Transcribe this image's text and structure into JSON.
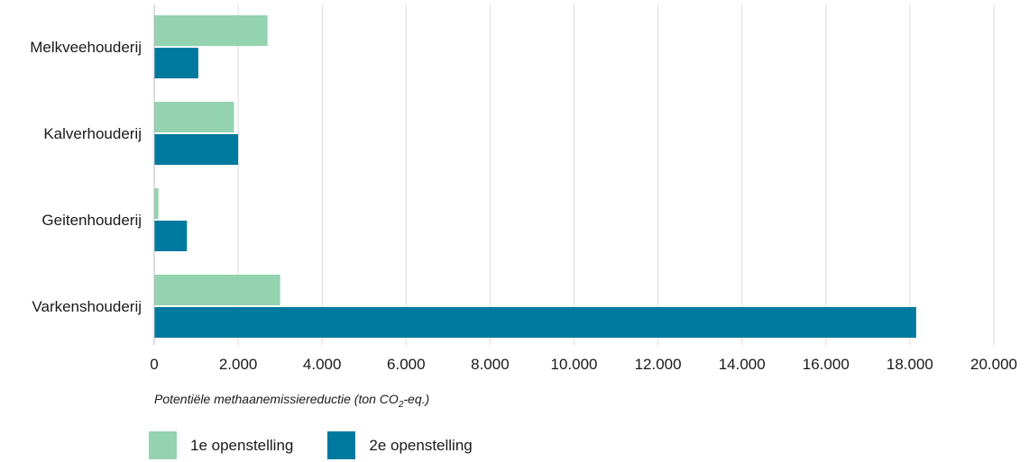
{
  "chart_data": {
    "type": "bar",
    "orientation": "horizontal",
    "categories": [
      "Melkveehouderij",
      "Kalverhouderij",
      "Geitenhouderij",
      "Varkenshouderij"
    ],
    "series": [
      {
        "name": "1e openstelling",
        "color": "#93d3b0",
        "values": [
          2700,
          1900,
          100,
          3000
        ]
      },
      {
        "name": "2e openstelling",
        "color": "#00799e",
        "values": [
          1050,
          2000,
          780,
          18150
        ]
      }
    ],
    "xlim": [
      0,
      20000
    ],
    "xticks": [
      0,
      2000,
      4000,
      6000,
      8000,
      10000,
      12000,
      14000,
      16000,
      18000,
      20000
    ],
    "xtick_labels": [
      "0",
      "2.000",
      "4.000",
      "6.000",
      "8.000",
      "10.000",
      "12.000",
      "14.000",
      "16.000",
      "18.000",
      "20.000"
    ],
    "xlabel_prefix": "Potentiële methaanemissiereductie (ton CO",
    "xlabel_sub": "2",
    "xlabel_suffix": "-eq.)",
    "grid": "vertical",
    "legend_position": "bottom-left"
  }
}
